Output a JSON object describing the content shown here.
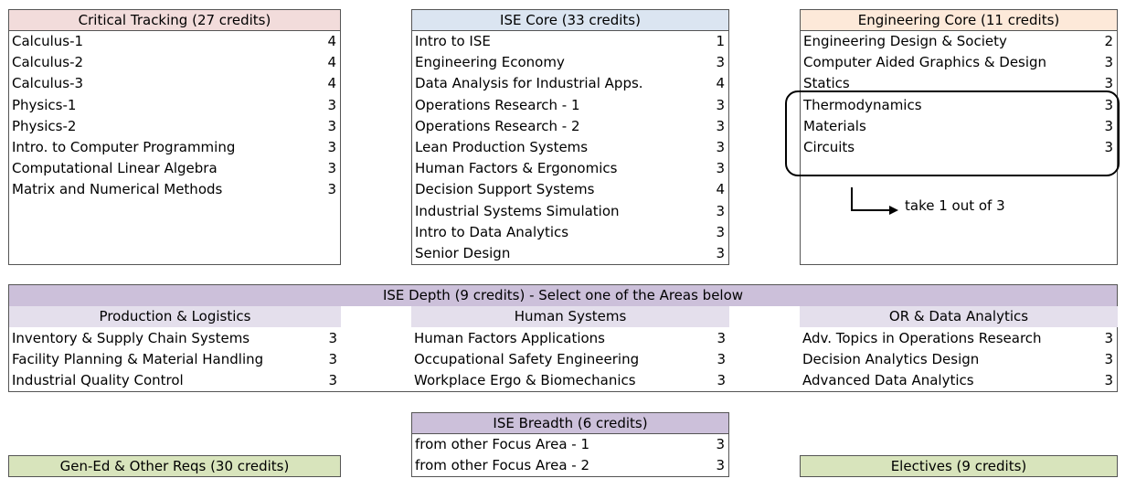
{
  "critical_tracking": {
    "title": "Critical Tracking (27 credits)",
    "courses": [
      {
        "name": "Calculus-1",
        "credits": "4"
      },
      {
        "name": "Calculus-2",
        "credits": "4"
      },
      {
        "name": "Calculus-3",
        "credits": "4"
      },
      {
        "name": "Physics-1",
        "credits": "3"
      },
      {
        "name": "Physics-2",
        "credits": "3"
      },
      {
        "name": "Intro. to Computer Programming",
        "credits": "3"
      },
      {
        "name": "Computational Linear Algebra",
        "credits": "3"
      },
      {
        "name": "Matrix and Numerical Methods",
        "credits": "3"
      }
    ]
  },
  "ise_core": {
    "title": "ISE Core (33 credits)",
    "courses": [
      {
        "name": "Intro to ISE",
        "credits": "1"
      },
      {
        "name": "Engineering Economy",
        "credits": "3"
      },
      {
        "name": "Data Analysis for Industrial Apps.",
        "credits": "4"
      },
      {
        "name": "Operations Research - 1",
        "credits": "3"
      },
      {
        "name": "Operations Research - 2",
        "credits": "3"
      },
      {
        "name": "Lean Production Systems",
        "credits": "3"
      },
      {
        "name": "Human Factors & Ergonomics",
        "credits": "3"
      },
      {
        "name": "Decision Support Systems",
        "credits": "4"
      },
      {
        "name": "Industrial Systems Simulation",
        "credits": "3"
      },
      {
        "name": "Intro to Data Analytics",
        "credits": "3"
      },
      {
        "name": "Senior Design",
        "credits": "3"
      }
    ]
  },
  "engineering_core": {
    "title": "Engineering Core (11 credits)",
    "courses": [
      {
        "name": "Engineering Design & Society",
        "credits": "2"
      },
      {
        "name": "Computer Aided Graphics & Design",
        "credits": "3"
      },
      {
        "name": "Statics",
        "credits": "3"
      },
      {
        "name": "Thermodynamics",
        "credits": "3"
      },
      {
        "name": "Materials",
        "credits": "3"
      },
      {
        "name": "Circuits",
        "credits": "3"
      }
    ],
    "note": "take 1 out of 3"
  },
  "ise_depth": {
    "title": "ISE Depth (9 credits) - Select one of the Areas below",
    "areas": [
      {
        "title": "Production & Logistics",
        "courses": [
          {
            "name": "Inventory & Supply Chain Systems",
            "credits": "3"
          },
          {
            "name": "Facility Planning & Material Handling",
            "credits": "3"
          },
          {
            "name": "Industrial Quality Control",
            "credits": "3"
          }
        ]
      },
      {
        "title": "Human Systems",
        "courses": [
          {
            "name": "Human Factors Applications",
            "credits": "3"
          },
          {
            "name": "Occupational Safety Engineering",
            "credits": "3"
          },
          {
            "name": "Workplace Ergo & Biomechanics",
            "credits": "3"
          }
        ]
      },
      {
        "title": "OR & Data Analytics",
        "courses": [
          {
            "name": "Adv. Topics in Operations Research",
            "credits": "3"
          },
          {
            "name": "Decision Analytics Design",
            "credits": "3"
          },
          {
            "name": "Advanced Data Analytics",
            "credits": "3"
          }
        ]
      }
    ]
  },
  "ise_breadth": {
    "title": "ISE Breadth (6 credits)",
    "courses": [
      {
        "name": "from other Focus Area - 1",
        "credits": "3"
      },
      {
        "name": "from other Focus Area - 2",
        "credits": "3"
      }
    ]
  },
  "gen_ed": {
    "title": "Gen-Ed & Other Reqs (30 credits)"
  },
  "electives": {
    "title": "Electives (9 credits)"
  },
  "colors": {
    "critical_header": "#f2dcdb",
    "ise_header": "#dbe5f1",
    "engineering_header": "#fde9d9",
    "depth_header": "#ccc0da",
    "depth_subheader": "#e4dfec",
    "green_box": "#d8e4bc"
  }
}
